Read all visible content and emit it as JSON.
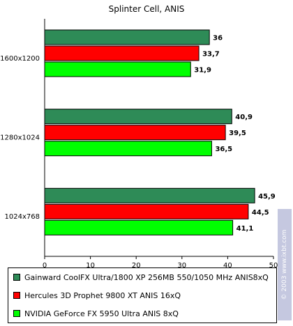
{
  "chart_data": {
    "type": "bar",
    "orientation": "horizontal",
    "title": "Splinter Cell, ANIS",
    "categories": [
      "1600x1200",
      "1280x1024",
      "1024x768"
    ],
    "series": [
      {
        "name": "Gainward CoolFX Ultra/1800 XP 256MB 550/1050 MHz ANIS8xQ",
        "color": "#2e8b57",
        "values": [
          36,
          40.9,
          45.9
        ],
        "labels": [
          "36",
          "40,9",
          "45,9"
        ]
      },
      {
        "name": "Hercules 3D Prophet 9800 XT ANIS 16xQ",
        "color": "#ff0000",
        "values": [
          33.7,
          39.5,
          44.5
        ],
        "labels": [
          "33,7",
          "39,5",
          "44,5"
        ]
      },
      {
        "name": "NVIDIA GeForce FX 5950 Ultra ANIS 8xQ",
        "color": "#00ff00",
        "values": [
          31.9,
          36.5,
          41.1
        ],
        "labels": [
          "31,9",
          "36,5",
          "41,1"
        ]
      }
    ],
    "xlim": [
      0,
      50
    ],
    "xticks": [
      0,
      10,
      20,
      30,
      40,
      50
    ],
    "grid": false,
    "legend": "bottom"
  },
  "watermark": "© 2003 www.ixbt.com"
}
